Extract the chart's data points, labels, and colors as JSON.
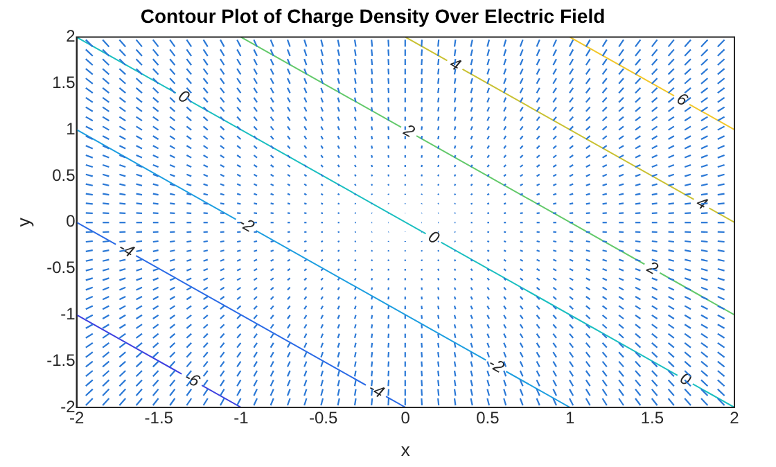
{
  "chart_data": {
    "type": "line",
    "title": "Contour Plot of Charge Density Over Electric Field",
    "xlabel": "x",
    "ylabel": "y",
    "xlim": [
      -2,
      2
    ],
    "ylim": [
      -2,
      2
    ],
    "xticks": [
      -2,
      -1.5,
      -1,
      -0.5,
      0,
      0.5,
      1,
      1.5,
      2
    ],
    "yticks": [
      -2,
      -1.5,
      -1,
      -0.5,
      0,
      0.5,
      1,
      1.5,
      2
    ],
    "grid": false,
    "legend": false,
    "marker": "none",
    "line_style": "solid",
    "series": [
      {
        "color": "#3d3fe0",
        "x": [
          -2,
          -1
        ],
        "values": [
          -1,
          -2
        ]
      },
      {
        "color": "#2a6ae6",
        "x": [
          -2,
          0
        ],
        "values": [
          0,
          -2
        ]
      },
      {
        "color": "#1c9ee0",
        "x": [
          -2,
          1
        ],
        "values": [
          1,
          -2
        ]
      },
      {
        "color": "#1abfc0",
        "x": [
          -2,
          2
        ],
        "values": [
          2,
          -2
        ]
      },
      {
        "color": "#62c96a",
        "x": [
          -1,
          2
        ],
        "values": [
          2,
          -1
        ]
      },
      {
        "color": "#c9c131",
        "x": [
          0,
          2
        ],
        "values": [
          2,
          0
        ]
      },
      {
        "color": "#f2c729",
        "x": [
          1,
          2
        ],
        "values": [
          2,
          1
        ]
      }
    ],
    "annotations": [
      {
        "text": "-6",
        "x": -1.3,
        "y": -1.7
      },
      {
        "text": "-4",
        "x": -1.7,
        "y": -0.3
      },
      {
        "text": "-4",
        "x": -0.18,
        "y": -1.82
      },
      {
        "text": "-2",
        "x": -0.97,
        "y": -0.03
      },
      {
        "text": "-2",
        "x": 0.55,
        "y": -1.55
      },
      {
        "text": "0",
        "x": -1.35,
        "y": 1.35
      },
      {
        "text": "0",
        "x": 0.17,
        "y": -0.17
      },
      {
        "text": "0",
        "x": 1.7,
        "y": -1.7
      },
      {
        "text": "2",
        "x": 0.02,
        "y": 0.98
      },
      {
        "text": "2",
        "x": 1.5,
        "y": -0.5
      },
      {
        "text": "4",
        "x": 0.3,
        "y": 1.7
      },
      {
        "text": "4",
        "x": 1.8,
        "y": 0.2
      },
      {
        "text": "6",
        "x": 1.68,
        "y": 1.32
      }
    ]
  }
}
